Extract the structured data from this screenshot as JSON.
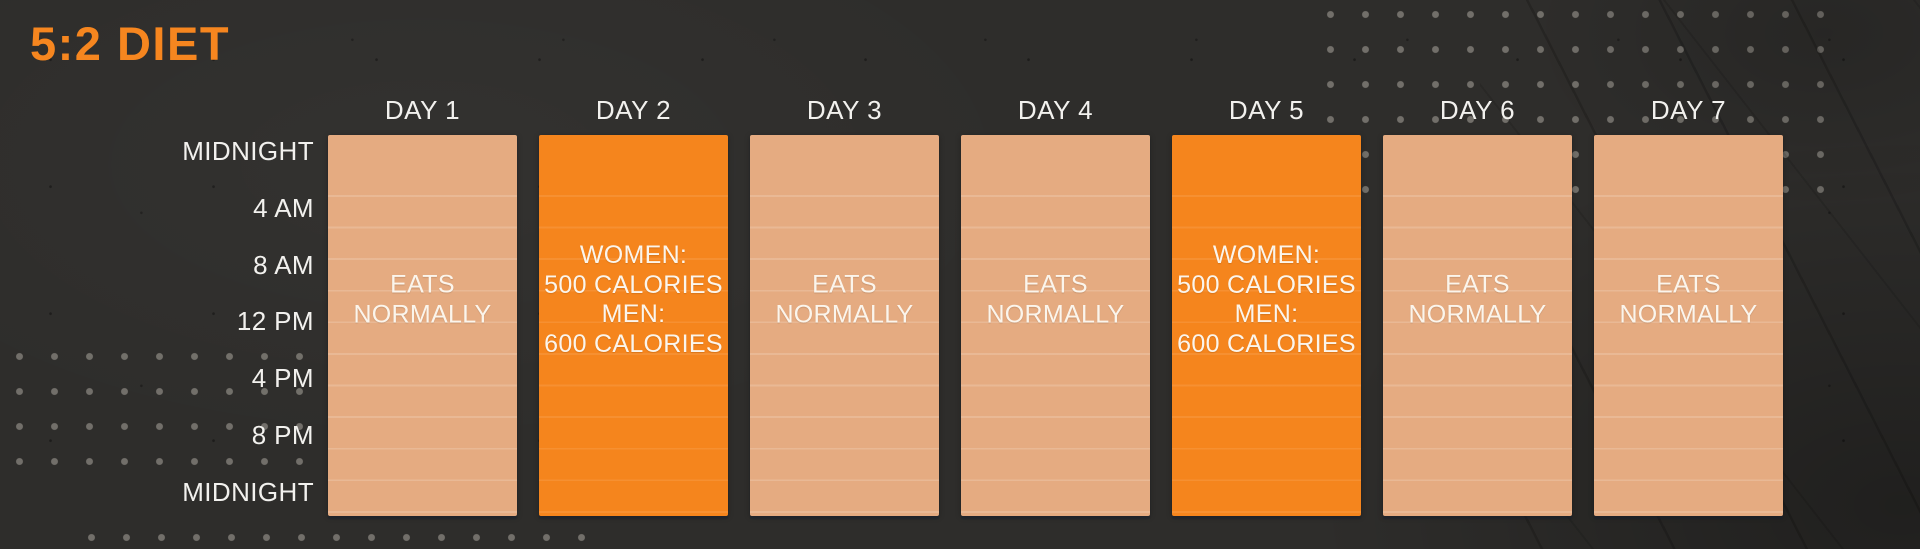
{
  "title": "5:2 DIET",
  "colors": {
    "background": "#2e2d2b",
    "accent_orange": "#f6861f",
    "normal_day_fill": "#e5ab81",
    "fasting_day_fill": "#f5851d",
    "column_text": "#fbf5ec",
    "axis_text": "#f2f1ee",
    "dot": "rgba(150,146,139,0.65)"
  },
  "chart_data": {
    "type": "table",
    "title": "5:2 DIET",
    "columns": [
      "DAY 1",
      "DAY 2",
      "DAY 3",
      "DAY 4",
      "DAY 5",
      "DAY 6",
      "DAY 7"
    ],
    "time_axis": {
      "orientation": "vertical",
      "ticks": [
        "MIDNIGHT",
        "4 AM",
        "8 AM",
        "12 PM",
        "4 PM",
        "8 PM",
        "MIDNIGHT"
      ],
      "range": "24 hours, midnight to midnight"
    },
    "days": [
      {
        "label": "DAY 1",
        "plan": "normal",
        "lines": [
          "EATS",
          "NORMALLY"
        ]
      },
      {
        "label": "DAY 2",
        "plan": "fasting",
        "lines": [
          "WOMEN:",
          "500 CALORIES",
          "MEN:",
          "600 CALORIES"
        ]
      },
      {
        "label": "DAY 3",
        "plan": "normal",
        "lines": [
          "EATS",
          "NORMALLY"
        ]
      },
      {
        "label": "DAY 4",
        "plan": "normal",
        "lines": [
          "EATS",
          "NORMALLY"
        ]
      },
      {
        "label": "DAY 5",
        "plan": "fasting",
        "lines": [
          "WOMEN:",
          "500 CALORIES",
          "MEN:",
          "600 CALORIES"
        ]
      },
      {
        "label": "DAY 6",
        "plan": "normal",
        "lines": [
          "EATS",
          "NORMALLY"
        ]
      },
      {
        "label": "DAY 7",
        "plan": "normal",
        "lines": [
          "EATS",
          "NORMALLY"
        ]
      }
    ],
    "summary": "5 normal eating days; 2 fasting days (Day 2 and Day 5) limited to 500 calories for women and 600 calories for men"
  }
}
